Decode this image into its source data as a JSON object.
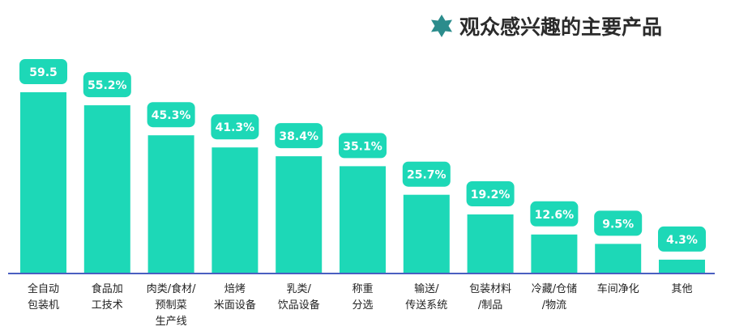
{
  "chart_data": {
    "type": "bar",
    "title": "观众感兴趣的主要产品",
    "categories": [
      [
        "全自动",
        "包装机"
      ],
      [
        "食品加",
        "工技术"
      ],
      [
        "肉类/食材/",
        "预制菜",
        "生产线"
      ],
      [
        "焙烤",
        "米面设备"
      ],
      [
        "乳类/",
        "饮品设备"
      ],
      [
        "称重",
        "分选"
      ],
      [
        "输送/",
        "传送系统"
      ],
      [
        "包装材料",
        "/制品"
      ],
      [
        "冷藏/仓储",
        "/物流"
      ],
      [
        "车间净化"
      ],
      [
        "其他"
      ]
    ],
    "values": [
      59.5,
      55.2,
      45.3,
      41.3,
      38.4,
      35.1,
      25.7,
      19.2,
      12.6,
      9.5,
      4.3
    ],
    "value_labels": [
      "59.5",
      "55.2%",
      "45.3%",
      "41.3%",
      "38.4%",
      "35.1%",
      "25.7%",
      "19.2%",
      "12.6%",
      "9.5%",
      "4.3%"
    ],
    "ylim": [
      0,
      59.5
    ],
    "xlabel": "",
    "ylabel": "",
    "grid": false,
    "colors": {
      "bar": "#1dd8b7",
      "axis": "#4a5fc1",
      "title_icon": "#2b8c8c",
      "title_text": "#2b2b2b",
      "label_text": "#ffffff"
    }
  }
}
